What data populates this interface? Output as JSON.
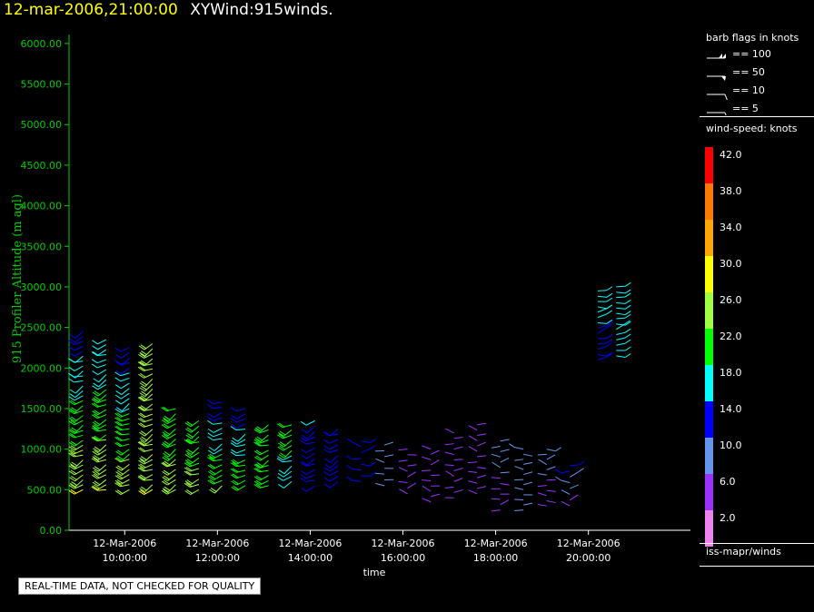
{
  "header": {
    "timestamp": "12-mar-2006,21:00:00",
    "title": "XYWind:915winds."
  },
  "qc_notice": "REAL-TIME DATA, NOT CHECKED FOR QUALITY",
  "legend": {
    "barb_title": "barb flags in knots",
    "barb_flags": [
      {
        "label": "== 100"
      },
      {
        "label": "== 50"
      },
      {
        "label": "== 10"
      },
      {
        "label": "== 5"
      }
    ],
    "speed_title": "wind-speed: knots",
    "colorbar": [
      {
        "label": "42.0",
        "color": "#ff0000"
      },
      {
        "label": "38.0",
        "color": "#ff7800"
      },
      {
        "label": "34.0",
        "color": "#ffa500"
      },
      {
        "label": "30.0",
        "color": "#ffff00"
      },
      {
        "label": "26.0",
        "color": "#a0ff40"
      },
      {
        "label": "22.0",
        "color": "#00ff00"
      },
      {
        "label": "18.0",
        "color": "#00ffff"
      },
      {
        "label": "14.0",
        "color": "#0000ff"
      },
      {
        "label": "10.0",
        "color": "#6495ed"
      },
      {
        "label": "6.0",
        "color": "#9b30ff"
      },
      {
        "label": "2.0",
        "color": "#ee82ee"
      }
    ],
    "source": "iss-mapr/winds"
  },
  "chart_data": {
    "type": "scatter",
    "ylabel": "915 Profiler Altitude (m agl)",
    "xlabel": "time",
    "ylim": [
      0,
      6200
    ],
    "y_ticks": [
      "0.00",
      "500.00",
      "1000.00",
      "1500.00",
      "2000.00",
      "2500.00",
      "3000.00",
      "3500.00",
      "4000.00",
      "4500.00",
      "5000.00",
      "5500.00",
      "6000.00"
    ],
    "xlim_hours": [
      8.8,
      22.2
    ],
    "x_ticks": [
      {
        "date": "12-Mar-2006",
        "time": "10:00:00",
        "hour": 10
      },
      {
        "date": "12-Mar-2006",
        "time": "12:00:00",
        "hour": 12
      },
      {
        "date": "12-Mar-2006",
        "time": "14:00:00",
        "hour": 14
      },
      {
        "date": "12-Mar-2006",
        "time": "16:00:00",
        "hour": 16
      },
      {
        "date": "12-Mar-2006",
        "time": "18:00:00",
        "hour": 18
      },
      {
        "date": "12-Mar-2006",
        "time": "20:00:00",
        "hour": 20
      }
    ],
    "profiles": [
      {
        "hour": 9.1,
        "ymin": 500,
        "ymax": 2450,
        "spd_low": 28,
        "spd_high": 14
      },
      {
        "hour": 9.6,
        "ymin": 500,
        "ymax": 2350,
        "spd_low": 28,
        "spd_high": 16
      },
      {
        "hour": 10.1,
        "ymin": 500,
        "ymax": 2250,
        "spd_low": 27,
        "spd_high": 14
      },
      {
        "hour": 10.6,
        "ymin": 500,
        "ymax": 2300,
        "spd_low": 28,
        "spd_high": 26
      },
      {
        "hour": 11.1,
        "ymin": 500,
        "ymax": 1500,
        "spd_low": 27,
        "spd_high": 20
      },
      {
        "hour": 11.6,
        "ymin": 500,
        "ymax": 1350,
        "spd_low": 25,
        "spd_high": 22
      },
      {
        "hour": 12.1,
        "ymin": 550,
        "ymax": 1580,
        "spd_low": 24,
        "spd_high": 14
      },
      {
        "hour": 12.6,
        "ymin": 550,
        "ymax": 1500,
        "spd_low": 23,
        "spd_high": 14
      },
      {
        "hour": 13.1,
        "ymin": 550,
        "ymax": 1300,
        "spd_low": 22,
        "spd_high": 22
      },
      {
        "hour": 13.6,
        "ymin": 600,
        "ymax": 1300,
        "spd_low": 19,
        "spd_high": 21
      },
      {
        "hour": 14.1,
        "ymin": 550,
        "ymax": 1350,
        "spd_low": 14,
        "spd_high": 16
      },
      {
        "hour": 14.6,
        "ymin": 600,
        "ymax": 1250,
        "spd_low": 13,
        "spd_high": 14
      },
      {
        "hour": 15.1,
        "ymin": 600,
        "ymax": 1100,
        "spd_low": 12,
        "spd_high": 12
      },
      {
        "hour": 15.6,
        "ymin": 550,
        "ymax": 1050,
        "spd_low": 8,
        "spd_high": 9
      },
      {
        "hour": 16.1,
        "ymin": 450,
        "ymax": 1000,
        "spd_low": 6,
        "spd_high": 7
      },
      {
        "hour": 16.6,
        "ymin": 350,
        "ymax": 1000,
        "spd_low": 6,
        "spd_high": 6
      },
      {
        "hour": 17.1,
        "ymin": 400,
        "ymax": 1200,
        "spd_low": 6,
        "spd_high": 6
      },
      {
        "hour": 17.6,
        "ymin": 450,
        "ymax": 1300,
        "spd_low": 6,
        "spd_high": 6
      },
      {
        "hour": 18.1,
        "ymin": 250,
        "ymax": 1100,
        "spd_low": 7,
        "spd_high": 9
      },
      {
        "hour": 18.6,
        "ymin": 250,
        "ymax": 1000,
        "spd_low": 8,
        "spd_high": 10
      },
      {
        "hour": 19.1,
        "ymin": 300,
        "ymax": 1000,
        "spd_low": 6,
        "spd_high": 10
      },
      {
        "hour": 19.6,
        "ymin": 300,
        "ymax": 800,
        "spd_low": 6,
        "spd_high": 14
      },
      {
        "hour": 20.2,
        "ymin": 2100,
        "ymax": 2950,
        "spd_low": 15,
        "spd_high": 17
      },
      {
        "hour": 20.6,
        "ymin": 2150,
        "ymax": 3000,
        "spd_low": 17,
        "spd_high": 18
      }
    ]
  }
}
